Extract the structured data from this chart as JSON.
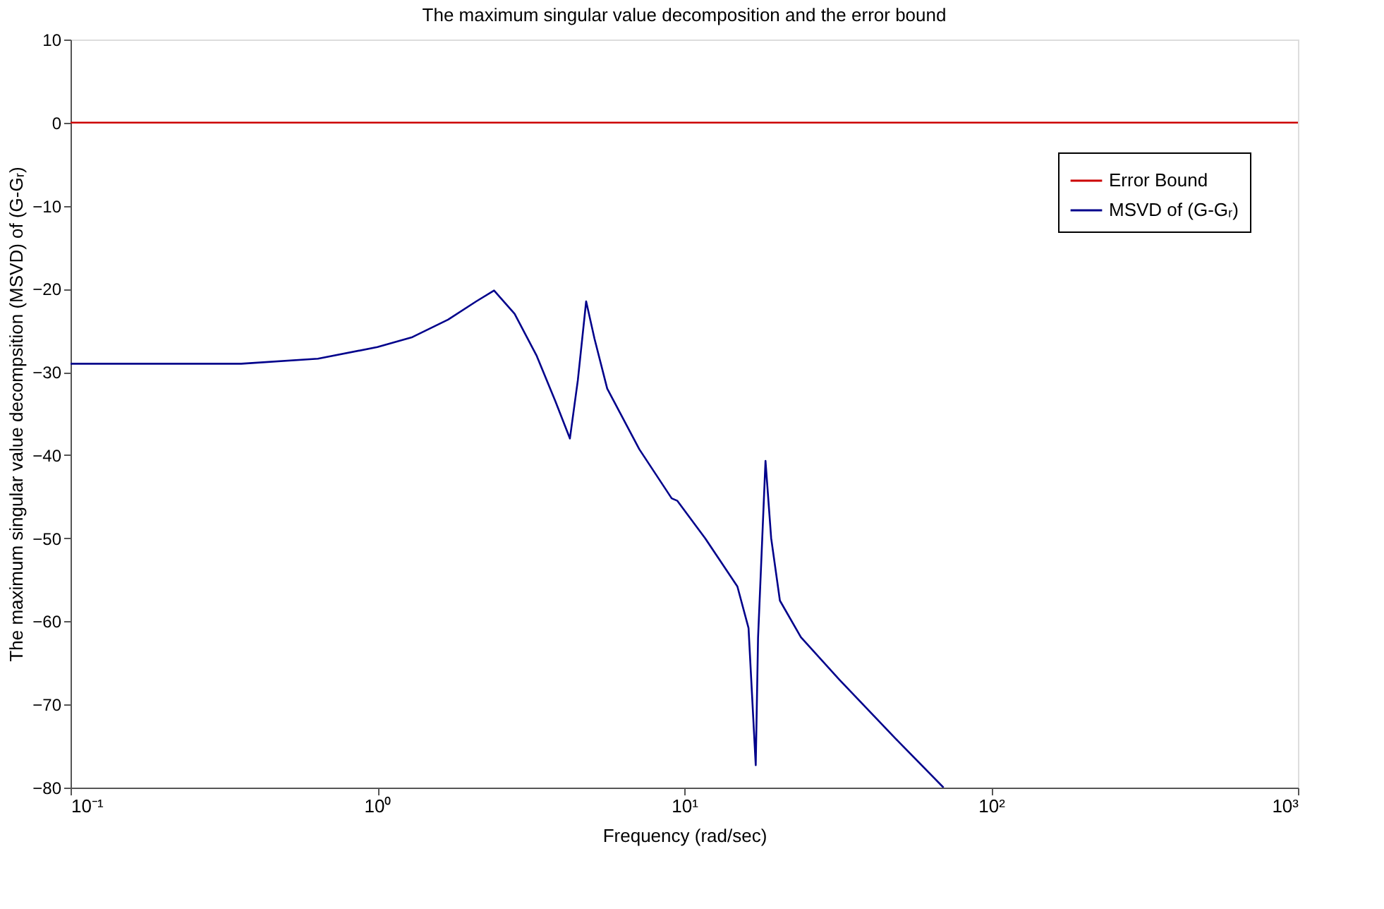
{
  "chart_data": {
    "type": "line",
    "title": "The maximum singular value decomposition and the error bound",
    "xlabel": "Frequency  (rad/sec)",
    "ylabel": "The maximum singular value decompsition (MSVD) of (G-Gᵣ)",
    "log": "x",
    "xlim": [
      0.1,
      1000
    ],
    "ylim": [
      -80,
      10
    ],
    "xticks": [
      {
        "value": 0.1,
        "label": "10⁻¹"
      },
      {
        "value": 1,
        "label": "10⁰"
      },
      {
        "value": 10,
        "label": "10¹"
      },
      {
        "value": 100,
        "label": "10²"
      },
      {
        "value": 1000,
        "label": "10³"
      }
    ],
    "yticks": [
      -80,
      -70,
      -60,
      -50,
      -40,
      -30,
      -20,
      -10,
      0,
      10
    ],
    "grid": false,
    "legend": "top right",
    "line_style": "solid",
    "marker": "none",
    "series": [
      {
        "name": "Error Bound",
        "color": "#cc0000",
        "x": [
          0.1,
          1000
        ],
        "values": [
          0,
          0
        ]
      },
      {
        "name": "MSVD of (G-Gᵣ)",
        "color": "#00008b",
        "x": [
          0.1,
          0.36,
          0.64,
          1.0,
          1.3,
          1.7,
          2.1,
          2.4,
          2.8,
          3.3,
          3.8,
          4.24,
          4.5,
          4.79,
          5.1,
          5.61,
          7.14,
          9.1,
          9.5,
          11.7,
          14.9,
          16.2,
          17.1,
          17.4,
          18.4,
          19.2,
          20.5,
          24,
          32,
          50,
          70
        ],
        "values": [
          -29,
          -29,
          -28.4,
          -27,
          -25.8,
          -23.7,
          -21.5,
          -20.2,
          -23,
          -28,
          -33.5,
          -38,
          -31,
          -21.5,
          -26,
          -32,
          -39.3,
          -45.2,
          -45.5,
          -50,
          -55.8,
          -60.8,
          -77.3,
          -62,
          -40.7,
          -50,
          -57.5,
          -61.9,
          -67,
          -74.5,
          -80
        ]
      }
    ]
  }
}
